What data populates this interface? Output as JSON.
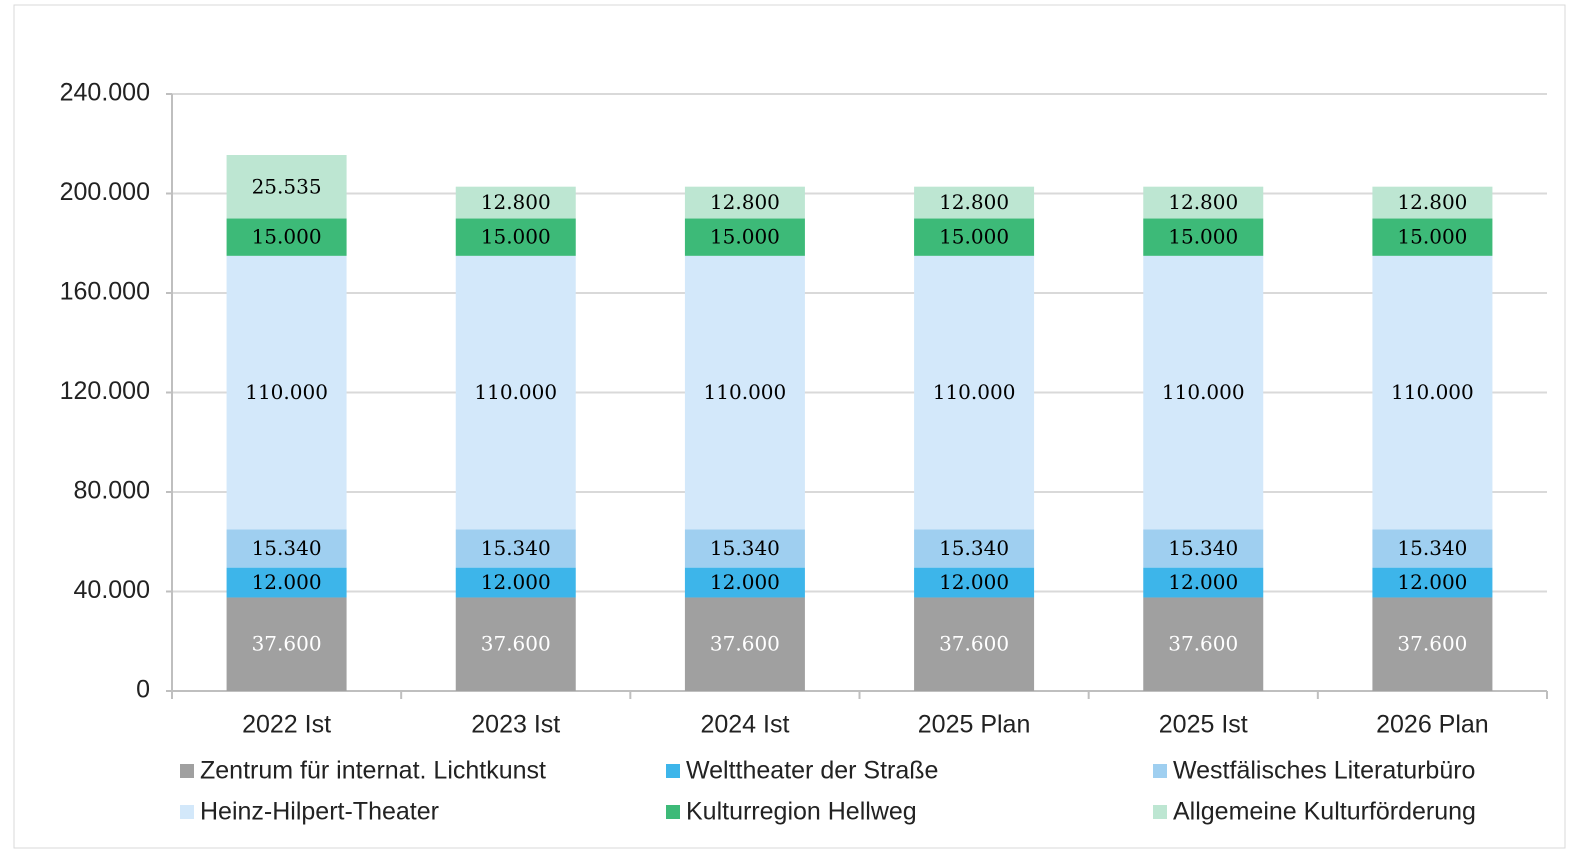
{
  "chart_data": {
    "type": "stacked_bar",
    "categories": [
      "2022 Ist",
      "2023 Ist",
      "2024 Ist",
      "2025 Plan",
      "2025 Ist",
      "2026 Plan"
    ],
    "series": [
      {
        "name": "Zentrum für internat. Lichtkunst",
        "color": "#a0a0a0",
        "label_color": "#ffffff",
        "values": [
          37600,
          37600,
          37600,
          37600,
          37600,
          37600
        ],
        "value_labels": [
          "37.600",
          "37.600",
          "37.600",
          "37.600",
          "37.600",
          "37.600"
        ]
      },
      {
        "name": "Welttheater der Straße",
        "color": "#3db5ea",
        "label_color": "#000000",
        "values": [
          12000,
          12000,
          12000,
          12000,
          12000,
          12000
        ],
        "value_labels": [
          "12.000",
          "12.000",
          "12.000",
          "12.000",
          "12.000",
          "12.000"
        ]
      },
      {
        "name": "Westfälisches Literaturbüro",
        "color": "#9fcff0",
        "label_color": "#000000",
        "values": [
          15340,
          15340,
          15340,
          15340,
          15340,
          15340
        ],
        "value_labels": [
          "15.340",
          "15.340",
          "15.340",
          "15.340",
          "15.340",
          "15.340"
        ]
      },
      {
        "name": "Heinz-Hilpert-Theater",
        "color": "#d3e8fa",
        "label_color": "#000000",
        "values": [
          110000,
          110000,
          110000,
          110000,
          110000,
          110000
        ],
        "value_labels": [
          "110.000",
          "110.000",
          "110.000",
          "110.000",
          "110.000",
          "110.000"
        ]
      },
      {
        "name": "Kulturregion Hellweg",
        "color": "#3dba78",
        "label_color": "#000000",
        "values": [
          15000,
          15000,
          15000,
          15000,
          15000,
          15000
        ],
        "value_labels": [
          "15.000",
          "15.000",
          "15.000",
          "15.000",
          "15.000",
          "15.000"
        ]
      },
      {
        "name": "Allgemeine Kulturförderung",
        "color": "#bde6d2",
        "label_color": "#000000",
        "values": [
          25535,
          12800,
          12800,
          12800,
          12800,
          12800
        ],
        "value_labels": [
          "25.535",
          "12.800",
          "12.800",
          "12.800",
          "12.800",
          "12.800"
        ]
      }
    ],
    "ylim": [
      0,
      240000
    ],
    "yticks": [
      {
        "value": 0,
        "label": "0"
      },
      {
        "value": 40000,
        "label": "40.000"
      },
      {
        "value": 80000,
        "label": "80.000"
      },
      {
        "value": 120000,
        "label": "120.000"
      },
      {
        "value": 160000,
        "label": "160.000"
      },
      {
        "value": 200000,
        "label": "200.000"
      },
      {
        "value": 240000,
        "label": "240.000"
      }
    ],
    "grid": true,
    "legend": "bottom"
  }
}
